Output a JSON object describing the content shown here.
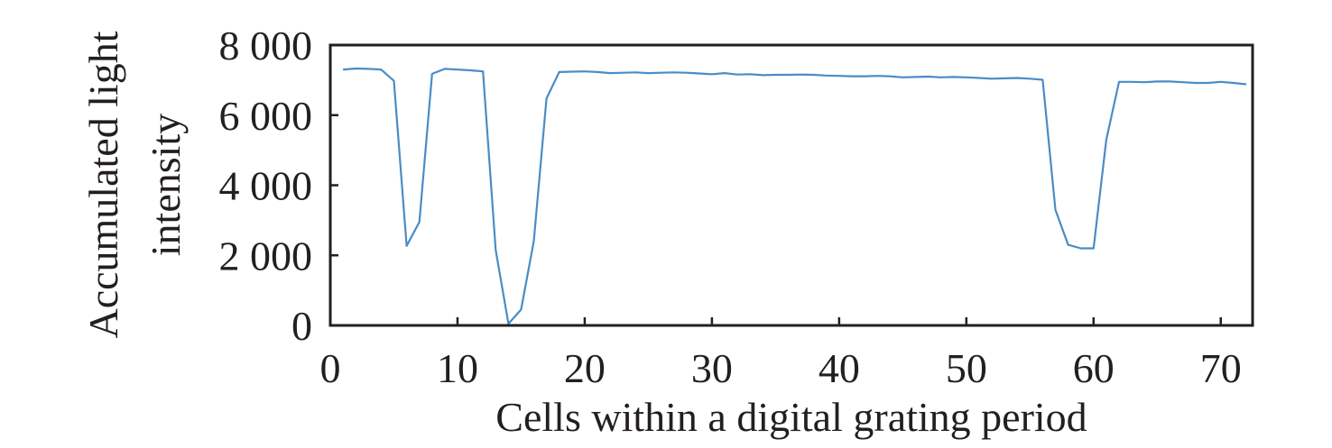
{
  "chart_data": {
    "type": "line",
    "xlabel": "Cells within a digital grating period",
    "ylabel_line1": "Accumulated light",
    "ylabel_line2": "intensity",
    "xlim": [
      0,
      72.5
    ],
    "ylim": [
      0,
      8000
    ],
    "xticks": [
      0,
      10,
      20,
      30,
      40,
      50,
      60,
      70
    ],
    "yticks": [
      0,
      2000,
      4000,
      6000,
      8000
    ],
    "ytick_labels": [
      "0",
      "2 000",
      "4 000",
      "6 000",
      "8 000"
    ],
    "grid": false,
    "series": [
      {
        "color": "#4a8cc6",
        "x": [
          1,
          2,
          3,
          4,
          5,
          6,
          7,
          8,
          9,
          10,
          11,
          12,
          13,
          14,
          15,
          16,
          17,
          18,
          19,
          20,
          21,
          22,
          23,
          24,
          25,
          26,
          27,
          28,
          29,
          30,
          31,
          32,
          33,
          34,
          35,
          36,
          37,
          38,
          39,
          40,
          41,
          42,
          43,
          44,
          45,
          46,
          47,
          48,
          49,
          50,
          51,
          52,
          53,
          54,
          55,
          56,
          57,
          58,
          59,
          60,
          61,
          62,
          63,
          64,
          65,
          66,
          67,
          68,
          69,
          70,
          71,
          72
        ],
        "y": [
          7300,
          7330,
          7320,
          7300,
          6980,
          2270,
          2950,
          7180,
          7320,
          7300,
          7280,
          7250,
          2150,
          50,
          450,
          2400,
          6480,
          7230,
          7240,
          7250,
          7230,
          7200,
          7210,
          7220,
          7200,
          7210,
          7220,
          7210,
          7190,
          7170,
          7200,
          7160,
          7170,
          7140,
          7150,
          7150,
          7160,
          7150,
          7130,
          7120,
          7110,
          7110,
          7120,
          7110,
          7080,
          7090,
          7100,
          7080,
          7090,
          7080,
          7060,
          7040,
          7050,
          7060,
          7040,
          7010,
          3300,
          2300,
          2200,
          2200,
          5300,
          6950,
          6950,
          6940,
          6960,
          6960,
          6940,
          6920,
          6920,
          6950,
          6920,
          6880
        ]
      }
    ]
  }
}
